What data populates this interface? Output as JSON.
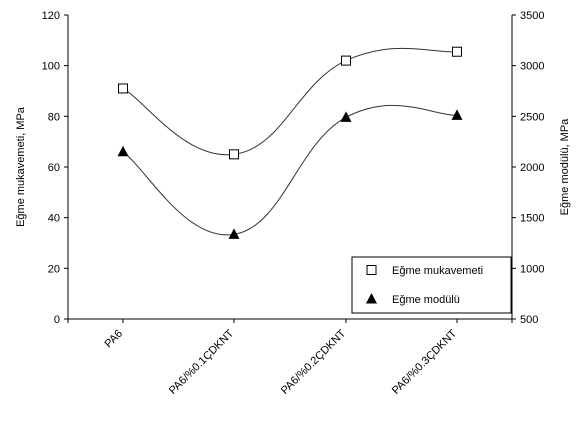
{
  "chart_data": {
    "type": "scatter",
    "categories": [
      "PA6",
      "PA6/%0.1ÇDKNT",
      "PA6/%0.2ÇDKNT",
      "PA6/%0.3ÇDKNT"
    ],
    "series": [
      {
        "name": "Eğme mukavemeti",
        "axis": "left",
        "marker": "open-square",
        "values": [
          91,
          65,
          102,
          105.5
        ],
        "smooth_curve": true
      },
      {
        "name": "Eğme modülü",
        "axis": "right",
        "marker": "filled-triangle",
        "values": [
          2150,
          1335,
          2490,
          2510
        ],
        "smooth_curve": true
      }
    ],
    "ylabel_left": "Eğme mukavemeti, MPa",
    "ylabel_right": "Eğme modülü, MPa",
    "ylim_left": [
      0,
      120
    ],
    "ylim_right": [
      500,
      3500
    ],
    "yticks_left": [
      "0",
      "20",
      "40",
      "60",
      "80",
      "100",
      "120"
    ],
    "yticks_right": [
      "500",
      "1000",
      "1500",
      "2000",
      "2500",
      "3000",
      "3500"
    ],
    "legend_position": "bottom-right",
    "grid": false
  }
}
